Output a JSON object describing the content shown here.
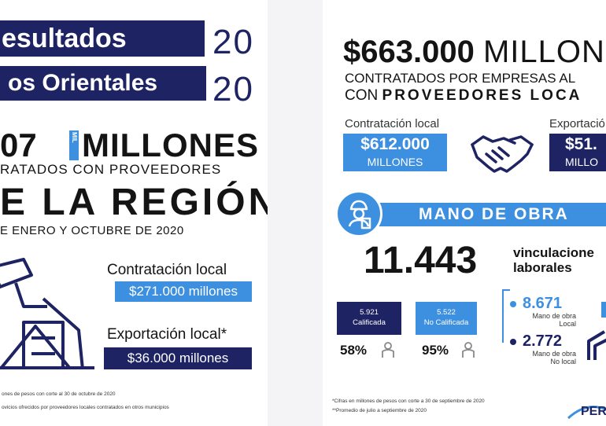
{
  "left": {
    "title_line1": "esultados",
    "title_line2": "os Orientales",
    "year_top": "20",
    "year_bottom": "20",
    "amount": "07",
    "amount_unit_vertical": "MIL",
    "amount_word": "MILLONES",
    "contracted_text": "RATADOS CON PROVEEDORES",
    "region_text": "E LA REGIÓN",
    "period_text": "E ENERO Y OCTUBRE DE 2020",
    "local_label": "Contratación local",
    "local_value": "$271.000 millones",
    "export_label": "Exportación local*",
    "export_value": "$36.000 millones",
    "note1": "ones de pesos con corte al 30 de octubre de 2020",
    "note2": "ovicios ofrecidos por proveedores locales contratados en otros municipios"
  },
  "right": {
    "amount": "$663.000",
    "amount_word": "MILLON",
    "line1": "CONTRATADOS POR EMPRESAS AL",
    "line2_prefix": "CON",
    "line2_bold": "PROVEEDORES LOCA",
    "local_label": "Contratación local",
    "local_amount": "$612.000",
    "local_unit": "MILLONES",
    "export_label": "Exportació",
    "export_amount": "$51.",
    "export_unit": "MILLO",
    "section_title": "MANO DE OBRA",
    "workforce_count": "11.443",
    "workforce_label1": "vinculacione",
    "workforce_label2": "laborales",
    "qualified_count": "5.921",
    "qualified_label": "Calificada",
    "qualified_pct": "58%",
    "unqualified_count": "5.522",
    "unqualified_label": "No Calificada",
    "unqualified_pct": "95%",
    "local_labor_count": "8.671",
    "local_labor_label": "Mano de obra Local",
    "nonlocal_labor_count": "2.772",
    "nonlocal_labor_label": "Mano de obra No local",
    "note1": "*Cifras en millones de pesos con corte a 30 de septiembre de 2020",
    "note2": "**Promedio de julio a septiembre de 2020",
    "logo_text": "PER"
  },
  "colors": {
    "navy": "#1e2463",
    "sky": "#3d8fe0"
  },
  "icons": [
    "oil-pump-icon",
    "handshake-icon",
    "worker-icon",
    "person-icon",
    "house-icon"
  ]
}
